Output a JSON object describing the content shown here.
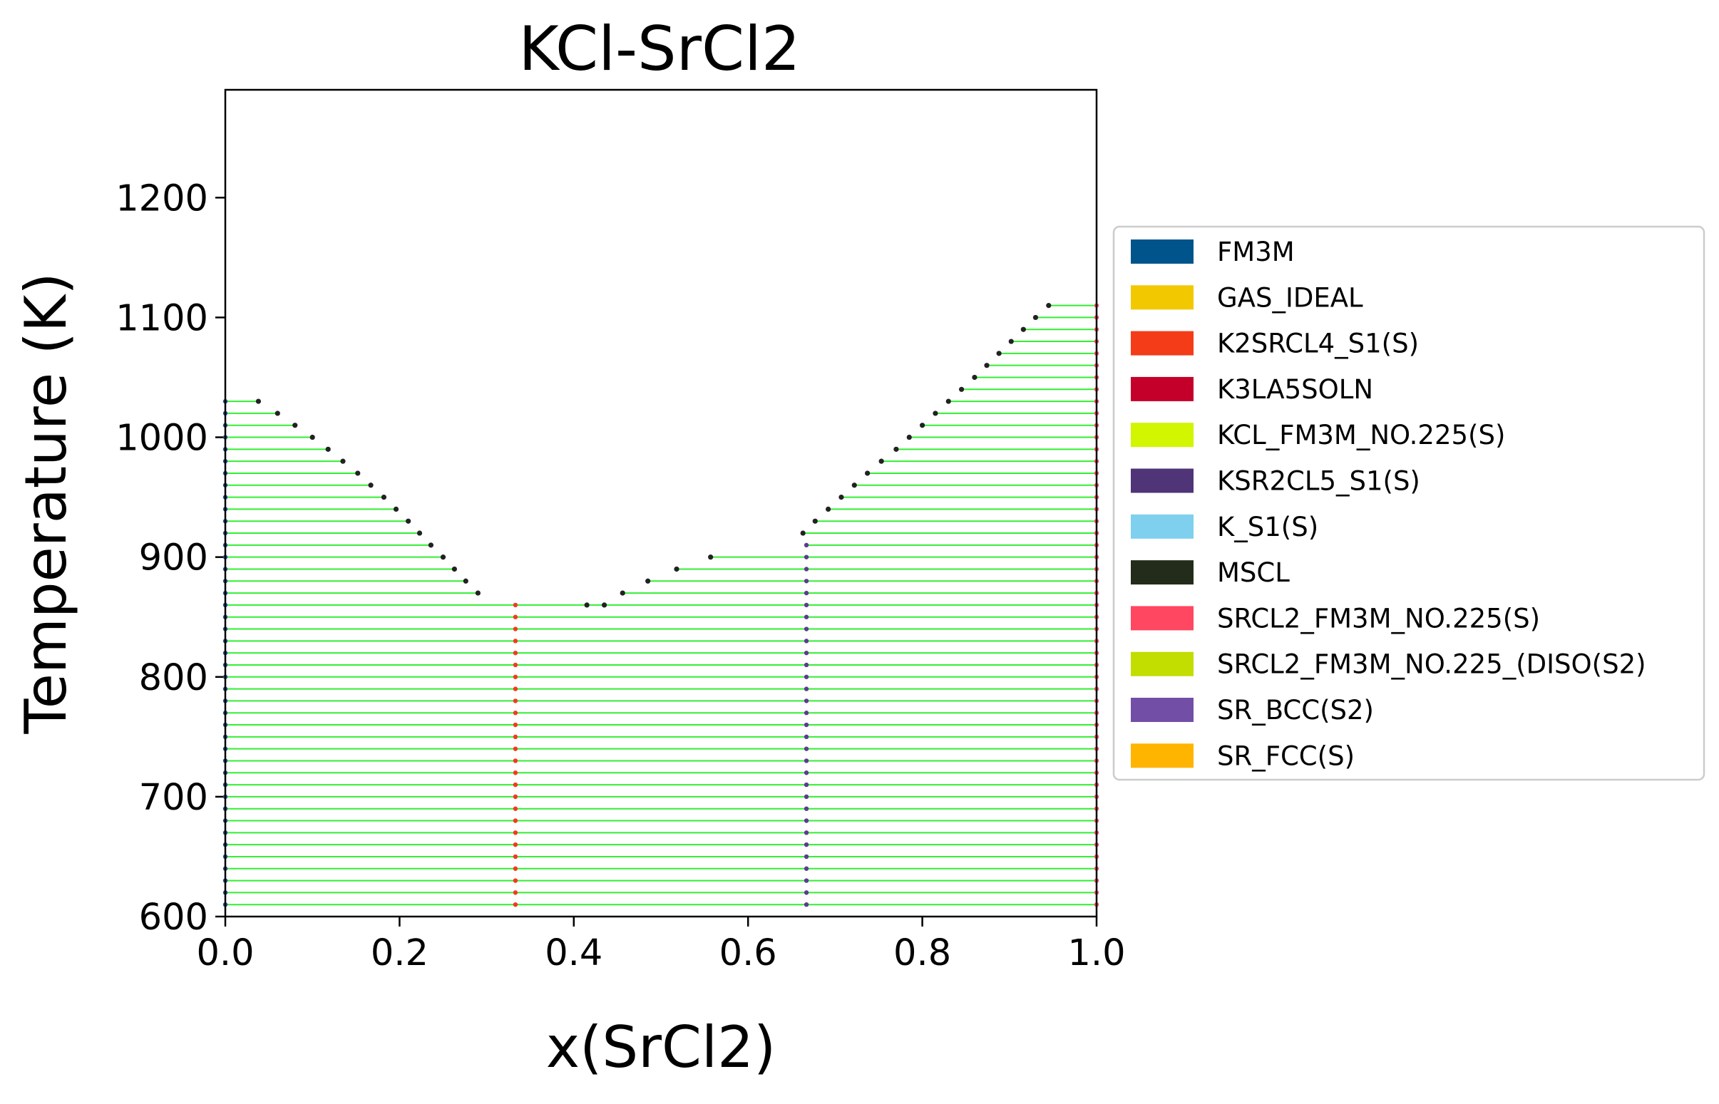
{
  "chart_data": {
    "type": "scatter",
    "title": "KCl-SrCl2",
    "xlabel": "x(SrCl2)",
    "ylabel": "Temperature (K)",
    "xlim": [
      0,
      1
    ],
    "ylim": [
      600,
      1290
    ],
    "xticks": [
      0.0,
      0.2,
      0.4,
      0.6,
      0.8,
      1.0
    ],
    "xtick_labels": [
      "0.0",
      "0.2",
      "0.4",
      "0.6",
      "0.8",
      "1.0"
    ],
    "yticks": [
      600,
      700,
      800,
      900,
      1000,
      1100,
      1200
    ],
    "ytick_labels": [
      "600",
      "700",
      "800",
      "900",
      "1000",
      "1100",
      "1200"
    ],
    "grid": false,
    "legend_placement": "outside-right",
    "tie_line_color": "#33ee33",
    "temperature_step": 10,
    "tie_lines": [
      {
        "T": 610,
        "segments": [
          [
            0,
            0.333
          ],
          [
            0.333,
            0.667
          ],
          [
            0.667,
            1.0
          ]
        ]
      },
      {
        "T": 620,
        "segments": [
          [
            0,
            0.333
          ],
          [
            0.333,
            0.667
          ],
          [
            0.667,
            1.0
          ]
        ]
      },
      {
        "T": 630,
        "segments": [
          [
            0,
            0.333
          ],
          [
            0.333,
            0.667
          ],
          [
            0.667,
            1.0
          ]
        ]
      },
      {
        "T": 640,
        "segments": [
          [
            0,
            0.333
          ],
          [
            0.333,
            0.667
          ],
          [
            0.667,
            1.0
          ]
        ]
      },
      {
        "T": 650,
        "segments": [
          [
            0,
            0.333
          ],
          [
            0.333,
            0.667
          ],
          [
            0.667,
            1.0
          ]
        ]
      },
      {
        "T": 660,
        "segments": [
          [
            0,
            0.333
          ],
          [
            0.333,
            0.667
          ],
          [
            0.667,
            1.0
          ]
        ]
      },
      {
        "T": 670,
        "segments": [
          [
            0,
            0.333
          ],
          [
            0.333,
            0.667
          ],
          [
            0.667,
            1.0
          ]
        ]
      },
      {
        "T": 680,
        "segments": [
          [
            0,
            0.333
          ],
          [
            0.333,
            0.667
          ],
          [
            0.667,
            1.0
          ]
        ]
      },
      {
        "T": 690,
        "segments": [
          [
            0,
            0.333
          ],
          [
            0.333,
            0.667
          ],
          [
            0.667,
            1.0
          ]
        ]
      },
      {
        "T": 700,
        "segments": [
          [
            0,
            0.333
          ],
          [
            0.333,
            0.667
          ],
          [
            0.667,
            1.0
          ]
        ]
      },
      {
        "T": 710,
        "segments": [
          [
            0,
            0.333
          ],
          [
            0.333,
            0.667
          ],
          [
            0.667,
            1.0
          ]
        ]
      },
      {
        "T": 720,
        "segments": [
          [
            0,
            0.333
          ],
          [
            0.333,
            0.667
          ],
          [
            0.667,
            1.0
          ]
        ]
      },
      {
        "T": 730,
        "segments": [
          [
            0,
            0.333
          ],
          [
            0.333,
            0.667
          ],
          [
            0.667,
            1.0
          ]
        ]
      },
      {
        "T": 740,
        "segments": [
          [
            0,
            0.333
          ],
          [
            0.333,
            0.667
          ],
          [
            0.667,
            1.0
          ]
        ]
      },
      {
        "T": 750,
        "segments": [
          [
            0,
            0.333
          ],
          [
            0.333,
            0.667
          ],
          [
            0.667,
            1.0
          ]
        ]
      },
      {
        "T": 760,
        "segments": [
          [
            0,
            0.333
          ],
          [
            0.333,
            0.667
          ],
          [
            0.667,
            1.0
          ]
        ]
      },
      {
        "T": 770,
        "segments": [
          [
            0,
            0.333
          ],
          [
            0.333,
            0.667
          ],
          [
            0.667,
            1.0
          ]
        ]
      },
      {
        "T": 780,
        "segments": [
          [
            0,
            0.333
          ],
          [
            0.333,
            0.667
          ],
          [
            0.667,
            1.0
          ]
        ]
      },
      {
        "T": 790,
        "segments": [
          [
            0,
            0.333
          ],
          [
            0.333,
            0.667
          ],
          [
            0.667,
            1.0
          ]
        ]
      },
      {
        "T": 800,
        "segments": [
          [
            0,
            0.333
          ],
          [
            0.333,
            0.667
          ],
          [
            0.667,
            1.0
          ]
        ]
      },
      {
        "T": 810,
        "segments": [
          [
            0,
            0.333
          ],
          [
            0.333,
            0.667
          ],
          [
            0.667,
            1.0
          ]
        ]
      },
      {
        "T": 820,
        "segments": [
          [
            0,
            0.333
          ],
          [
            0.333,
            0.667
          ],
          [
            0.667,
            1.0
          ]
        ]
      },
      {
        "T": 830,
        "segments": [
          [
            0,
            0.333
          ],
          [
            0.333,
            0.667
          ],
          [
            0.667,
            1.0
          ]
        ]
      },
      {
        "T": 840,
        "segments": [
          [
            0,
            0.333
          ],
          [
            0.333,
            0.667
          ],
          [
            0.667,
            1.0
          ]
        ]
      },
      {
        "T": 850,
        "segments": [
          [
            0,
            0.333
          ],
          [
            0.333,
            0.667
          ],
          [
            0.667,
            1.0
          ]
        ]
      },
      {
        "T": 860,
        "segments": [
          [
            0,
            0.333
          ],
          [
            0.333,
            0.667
          ],
          [
            0.667,
            1.0
          ]
        ]
      },
      {
        "T": 870,
        "segments": [
          [
            0,
            0.29
          ],
          [
            0.456,
            0.667
          ],
          [
            0.667,
            1.0
          ]
        ]
      },
      {
        "T": 880,
        "segments": [
          [
            0,
            0.276
          ],
          [
            0.485,
            0.667
          ],
          [
            0.667,
            1.0
          ]
        ]
      },
      {
        "T": 890,
        "segments": [
          [
            0,
            0.263
          ],
          [
            0.518,
            0.667
          ],
          [
            0.667,
            1.0
          ]
        ]
      },
      {
        "T": 900,
        "segments": [
          [
            0,
            0.25
          ],
          [
            0.557,
            0.667
          ],
          [
            0.667,
            1.0
          ]
        ]
      },
      {
        "T": 910,
        "segments": [
          [
            0,
            0.236
          ],
          [
            0.667,
            1.0
          ]
        ]
      },
      {
        "T": 920,
        "segments": [
          [
            0,
            0.223
          ],
          [
            0.663,
            1.0
          ]
        ]
      },
      {
        "T": 930,
        "segments": [
          [
            0,
            0.21
          ],
          [
            0.677,
            1.0
          ]
        ]
      },
      {
        "T": 940,
        "segments": [
          [
            0,
            0.196
          ],
          [
            0.692,
            1.0
          ]
        ]
      },
      {
        "T": 950,
        "segments": [
          [
            0,
            0.182
          ],
          [
            0.707,
            1.0
          ]
        ]
      },
      {
        "T": 960,
        "segments": [
          [
            0,
            0.167
          ],
          [
            0.722,
            1.0
          ]
        ]
      },
      {
        "T": 970,
        "segments": [
          [
            0,
            0.152
          ],
          [
            0.737,
            1.0
          ]
        ]
      },
      {
        "T": 980,
        "segments": [
          [
            0,
            0.135
          ],
          [
            0.753,
            1.0
          ]
        ]
      },
      {
        "T": 990,
        "segments": [
          [
            0,
            0.118
          ],
          [
            0.77,
            1.0
          ]
        ]
      },
      {
        "T": 1000,
        "segments": [
          [
            0,
            0.1
          ],
          [
            0.785,
            1.0
          ]
        ]
      },
      {
        "T": 1010,
        "segments": [
          [
            0,
            0.08
          ],
          [
            0.8,
            1.0
          ]
        ]
      },
      {
        "T": 1020,
        "segments": [
          [
            0,
            0.06
          ],
          [
            0.815,
            1.0
          ]
        ]
      },
      {
        "T": 1030,
        "segments": [
          [
            0,
            0.038
          ],
          [
            0.83,
            1.0
          ]
        ]
      },
      {
        "T": 1040,
        "segments": [
          [
            0.845,
            1.0
          ]
        ]
      },
      {
        "T": 1050,
        "segments": [
          [
            0.86,
            1.0
          ]
        ]
      },
      {
        "T": 1060,
        "segments": [
          [
            0.874,
            1.0
          ]
        ]
      },
      {
        "T": 1070,
        "segments": [
          [
            0.888,
            1.0
          ]
        ]
      },
      {
        "T": 1080,
        "segments": [
          [
            0.902,
            1.0
          ]
        ]
      },
      {
        "T": 1090,
        "segments": [
          [
            0.916,
            1.0
          ]
        ]
      },
      {
        "T": 1100,
        "segments": [
          [
            0.93,
            1.0
          ]
        ]
      },
      {
        "T": 1110,
        "segments": [
          [
            0.945,
            1.0
          ]
        ]
      }
    ],
    "liquidus_points": [
      {
        "x": 0.038,
        "T": 1030
      },
      {
        "x": 0.06,
        "T": 1020
      },
      {
        "x": 0.08,
        "T": 1010
      },
      {
        "x": 0.1,
        "T": 1000
      },
      {
        "x": 0.118,
        "T": 990
      },
      {
        "x": 0.135,
        "T": 980
      },
      {
        "x": 0.152,
        "T": 970
      },
      {
        "x": 0.167,
        "T": 960
      },
      {
        "x": 0.182,
        "T": 950
      },
      {
        "x": 0.196,
        "T": 940
      },
      {
        "x": 0.21,
        "T": 930
      },
      {
        "x": 0.223,
        "T": 920
      },
      {
        "x": 0.236,
        "T": 910
      },
      {
        "x": 0.25,
        "T": 900
      },
      {
        "x": 0.263,
        "T": 890
      },
      {
        "x": 0.276,
        "T": 880
      },
      {
        "x": 0.29,
        "T": 870
      },
      {
        "x": 0.415,
        "T": 860
      },
      {
        "x": 0.435,
        "T": 860
      },
      {
        "x": 0.456,
        "T": 870
      },
      {
        "x": 0.485,
        "T": 880
      },
      {
        "x": 0.518,
        "T": 890
      },
      {
        "x": 0.557,
        "T": 900
      },
      {
        "x": 0.663,
        "T": 920
      },
      {
        "x": 0.677,
        "T": 930
      },
      {
        "x": 0.692,
        "T": 940
      },
      {
        "x": 0.707,
        "T": 950
      },
      {
        "x": 0.722,
        "T": 960
      },
      {
        "x": 0.737,
        "T": 970
      },
      {
        "x": 0.753,
        "T": 980
      },
      {
        "x": 0.77,
        "T": 990
      },
      {
        "x": 0.785,
        "T": 1000
      },
      {
        "x": 0.8,
        "T": 1010
      },
      {
        "x": 0.815,
        "T": 1020
      },
      {
        "x": 0.83,
        "T": 1030
      },
      {
        "x": 0.845,
        "T": 1040
      },
      {
        "x": 0.86,
        "T": 1050
      },
      {
        "x": 0.874,
        "T": 1060
      },
      {
        "x": 0.888,
        "T": 1070
      },
      {
        "x": 0.902,
        "T": 1080
      },
      {
        "x": 0.916,
        "T": 1090
      },
      {
        "x": 0.93,
        "T": 1100
      },
      {
        "x": 0.945,
        "T": 1110
      }
    ],
    "solid_phase_columns": [
      {
        "x": 0.0,
        "T_min": 610,
        "T_max": 1030,
        "color": "#1f4e8c"
      },
      {
        "x": 0.333,
        "T_min": 610,
        "T_max": 860,
        "color": "#f03c1e"
      },
      {
        "x": 0.667,
        "T_min": 610,
        "T_max": 910,
        "color": "#5a3d8c"
      },
      {
        "x": 1.0,
        "T_min": 610,
        "T_max": 1110,
        "color": "#ff4d6a"
      }
    ],
    "liquidus_point_color": "#222222",
    "legend": [
      {
        "label": "FM3M",
        "color": "#00548c"
      },
      {
        "label": "GAS_IDEAL",
        "color": "#f2c800"
      },
      {
        "label": "K2SRCL4_S1(S)",
        "color": "#f43c19"
      },
      {
        "label": "K3LA5SOLN",
        "color": "#c4002a"
      },
      {
        "label": "KCL_FM3M_NO.225(S)",
        "color": "#d2f500"
      },
      {
        "label": "KSR2CL5_S1(S)",
        "color": "#4f3478"
      },
      {
        "label": "K_S1(S)",
        "color": "#7fcfee"
      },
      {
        "label": "MSCL",
        "color": "#232c1a"
      },
      {
        "label": "SRCL2_FM3M_NO.225(S)",
        "color": "#ff4762"
      },
      {
        "label": "SRCL2_FM3M_NO.225_(DISO(S2)",
        "color": "#c2dd00"
      },
      {
        "label": "SR_BCC(S2)",
        "color": "#734ea6"
      },
      {
        "label": "SR_FCC(S)",
        "color": "#ffb400"
      }
    ]
  }
}
